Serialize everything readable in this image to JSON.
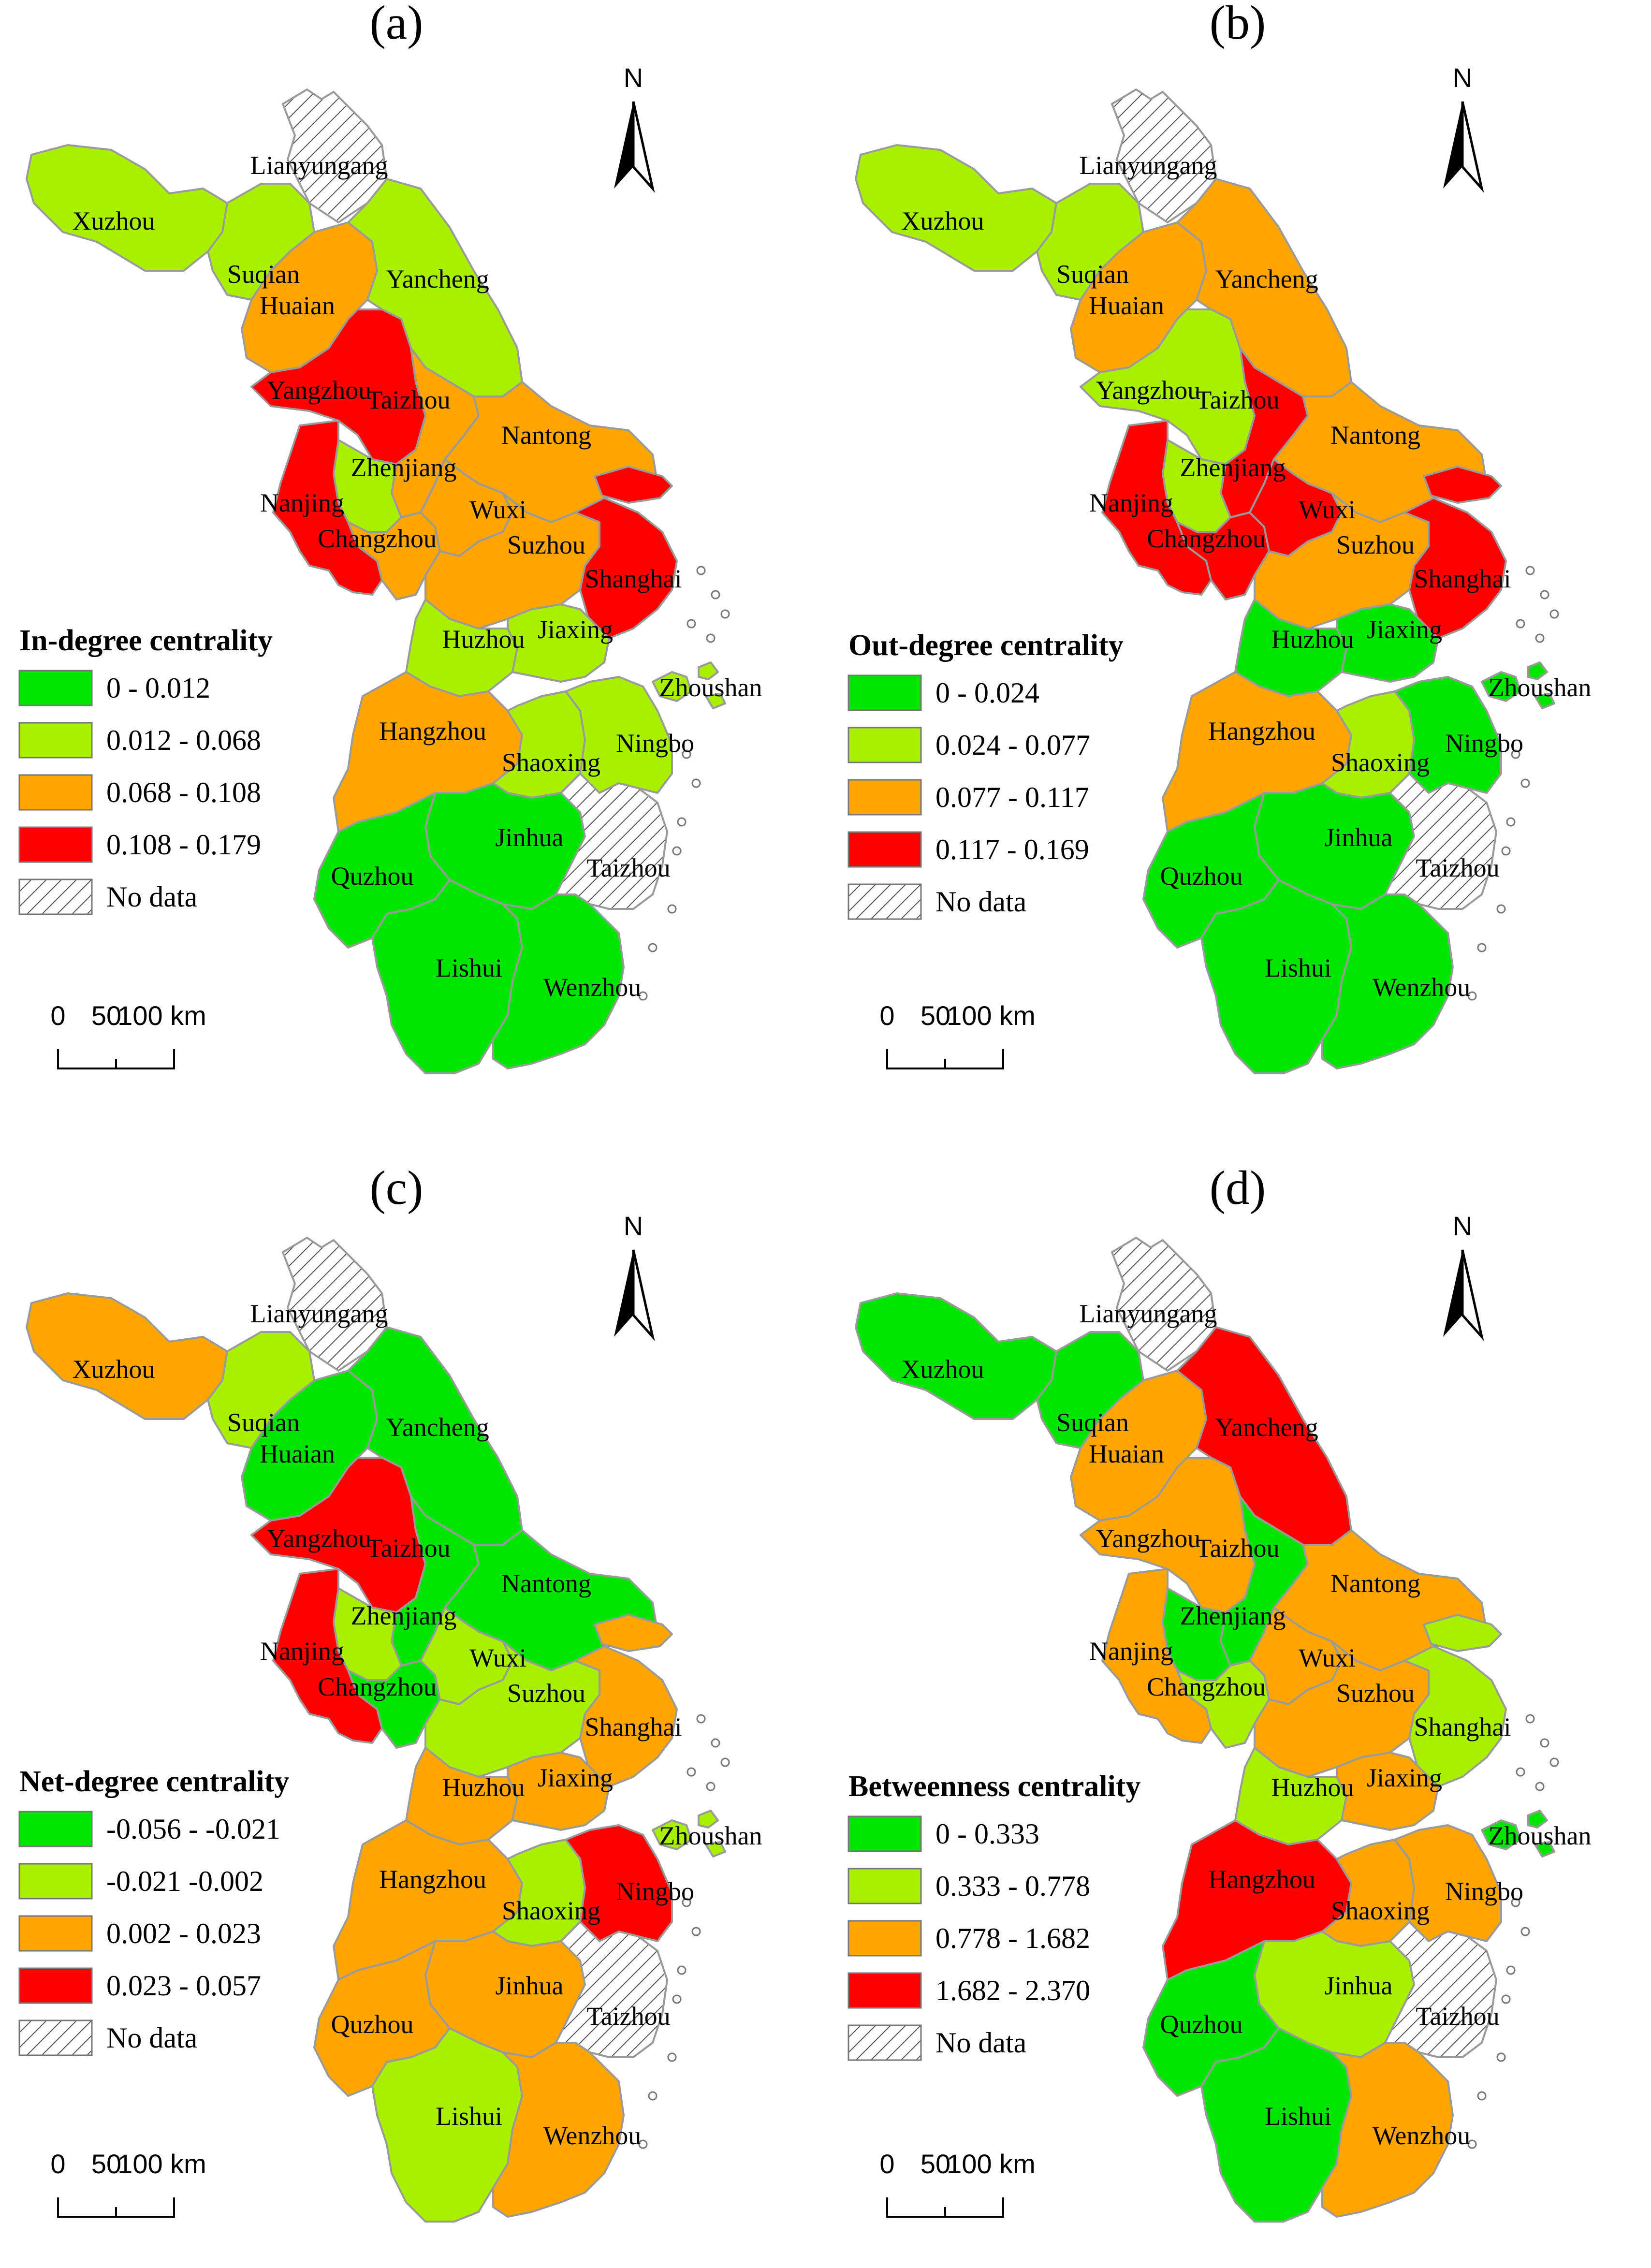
{
  "colors": {
    "green": "#00E600",
    "lightgreen": "#A8F000",
    "orange": "#FFA500",
    "red": "#FF0000",
    "nodata": "hatched"
  },
  "north_label": "N",
  "scale_bar": {
    "labels": [
      "0",
      "50",
      "100 km"
    ]
  },
  "no_data_label": "No data",
  "panels": [
    {
      "letter": "(a)",
      "legend_title": "In-degree centrality",
      "classes": [
        "0 - 0.012",
        "0.012 - 0.068",
        "0.068 - 0.108",
        "0.108 - 0.179"
      ],
      "values": {
        "Lianyungang": "nodata",
        "Xuzhou": "lightgreen",
        "Suqian": "lightgreen",
        "Huaian": "orange",
        "Yancheng": "lightgreen",
        "Yangzhou": "red",
        "Taizhou_JS": "orange",
        "Nantong": "orange",
        "Nanjing": "red",
        "Zhenjiang": "lightgreen",
        "Changzhou": "orange",
        "Wuxi": "orange",
        "Suzhou": "orange",
        "Shanghai": "red",
        "Huzhou": "lightgreen",
        "Jiaxing": "lightgreen",
        "Zhoushan": "lightgreen",
        "Hangzhou": "orange",
        "Shaoxing": "lightgreen",
        "Ningbo": "lightgreen",
        "Jinhua": "green",
        "Quzhou": "green",
        "Taizhou_ZJ": "nodata",
        "Lishui": "green",
        "Wenzhou": "green"
      }
    },
    {
      "letter": "(b)",
      "legend_title": "Out-degree centrality",
      "classes": [
        "0 - 0.024",
        "0.024 - 0.077",
        "0.077 - 0.117",
        "0.117 - 0.169"
      ],
      "values": {
        "Lianyungang": "nodata",
        "Xuzhou": "lightgreen",
        "Suqian": "lightgreen",
        "Huaian": "orange",
        "Yancheng": "orange",
        "Yangzhou": "lightgreen",
        "Taizhou_JS": "red",
        "Nantong": "orange",
        "Nanjing": "red",
        "Zhenjiang": "lightgreen",
        "Changzhou": "red",
        "Wuxi": "red",
        "Suzhou": "orange",
        "Shanghai": "red",
        "Huzhou": "green",
        "Jiaxing": "green",
        "Zhoushan": "green",
        "Hangzhou": "orange",
        "Shaoxing": "lightgreen",
        "Ningbo": "green",
        "Jinhua": "green",
        "Quzhou": "green",
        "Taizhou_ZJ": "nodata",
        "Lishui": "green",
        "Wenzhou": "green"
      }
    },
    {
      "letter": "(c)",
      "legend_title": "Net-degree centrality",
      "classes": [
        "-0.056 - -0.021",
        "-0.021 -0.002",
        "0.002 - 0.023",
        "0.023 - 0.057"
      ],
      "values": {
        "Lianyungang": "nodata",
        "Xuzhou": "orange",
        "Suqian": "lightgreen",
        "Huaian": "green",
        "Yancheng": "green",
        "Yangzhou": "red",
        "Taizhou_JS": "green",
        "Nantong": "green",
        "Nanjing": "red",
        "Zhenjiang": "lightgreen",
        "Changzhou": "green",
        "Wuxi": "lightgreen",
        "Suzhou": "lightgreen",
        "Shanghai": "orange",
        "Huzhou": "orange",
        "Jiaxing": "orange",
        "Zhoushan": "lightgreen",
        "Hangzhou": "orange",
        "Shaoxing": "lightgreen",
        "Ningbo": "red",
        "Jinhua": "orange",
        "Quzhou": "orange",
        "Taizhou_ZJ": "nodata",
        "Lishui": "lightgreen",
        "Wenzhou": "orange"
      }
    },
    {
      "letter": "(d)",
      "legend_title": "Betweenness centrality",
      "classes": [
        "0 - 0.333",
        "0.333 - 0.778",
        "0.778 - 1.682",
        "1.682 - 2.370"
      ],
      "values": {
        "Lianyungang": "nodata",
        "Xuzhou": "green",
        "Suqian": "green",
        "Huaian": "orange",
        "Yancheng": "red",
        "Yangzhou": "orange",
        "Taizhou_JS": "green",
        "Nantong": "orange",
        "Nanjing": "orange",
        "Zhenjiang": "green",
        "Changzhou": "lightgreen",
        "Wuxi": "orange",
        "Suzhou": "orange",
        "Shanghai": "lightgreen",
        "Huzhou": "lightgreen",
        "Jiaxing": "orange",
        "Zhoushan": "green",
        "Hangzhou": "red",
        "Shaoxing": "orange",
        "Ningbo": "orange",
        "Jinhua": "lightgreen",
        "Quzhou": "green",
        "Taizhou_ZJ": "nodata",
        "Lishui": "green",
        "Wenzhou": "orange"
      }
    }
  ],
  "city_labels": {
    "Lianyungang": "Lianyungang",
    "Xuzhou": "Xuzhou",
    "Suqian": "Suqian",
    "Huaian": "Huaian",
    "Yancheng": "Yancheng",
    "Yangzhou": "Yangzhou",
    "Taizhou_JS": "Taizhou",
    "Nantong": "Nantong",
    "Zhenjiang": "Zhenjiang",
    "Nanjing": "Nanjing",
    "Changzhou": "Changzhou",
    "Wuxi": "Wuxi",
    "Suzhou": "Suzhou",
    "Shanghai": "Shanghai",
    "Huzhou": "Huzhou",
    "Jiaxing": "Jiaxing",
    "Zhoushan": "Zhoushan",
    "Hangzhou": "Hangzhou",
    "Shaoxing": "Shaoxing",
    "Ningbo": "Ningbo",
    "Jinhua": "Jinhua",
    "Taizhou_ZJ": "Taizhou",
    "Quzhou": "Quzhou",
    "Lishui": "Lishui",
    "Wenzhou": "Wenzhou"
  }
}
